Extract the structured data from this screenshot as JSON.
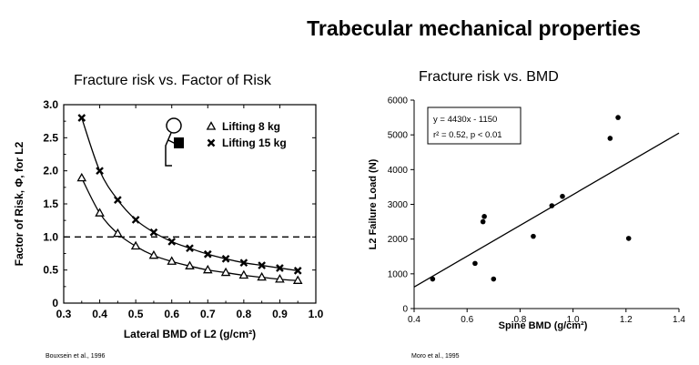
{
  "slide": {
    "title": "Trabecular mechanical properties",
    "left_heading": "Fracture risk vs. Factor of Risk",
    "right_heading": "Fracture risk vs. BMD",
    "left_credit": "Bouxsein et al., 1996",
    "right_credit": "Moro et al., 1995"
  },
  "chart_data": [
    {
      "type": "line",
      "title": "",
      "xlabel": "Lateral BMD of L2 (g/cm²)",
      "ylabel": "Factor of Risk, Φ, for L2",
      "xlim": [
        0.3,
        1.0
      ],
      "ylim": [
        0,
        3.0
      ],
      "xticks": [
        "0.3",
        "0.4",
        "0.5",
        "0.6",
        "0.7",
        "0.8",
        "0.9",
        "1.0"
      ],
      "yticks": [
        "0",
        "0.5",
        "1.0",
        "1.5",
        "2.0",
        "2.5",
        "3.0"
      ],
      "reference_line": {
        "y": 1.0,
        "style": "dashed"
      },
      "legend_position": "top-right",
      "series": [
        {
          "name": "Lifting 8 kg",
          "marker": "triangle",
          "x": [
            0.35,
            0.4,
            0.45,
            0.5,
            0.55,
            0.6,
            0.65,
            0.7,
            0.75,
            0.8,
            0.85,
            0.9,
            0.95
          ],
          "y": [
            1.89,
            1.36,
            1.05,
            0.86,
            0.72,
            0.63,
            0.56,
            0.5,
            0.46,
            0.42,
            0.39,
            0.36,
            0.34
          ]
        },
        {
          "name": "Lifting 15 kg",
          "marker": "x",
          "x": [
            0.35,
            0.4,
            0.45,
            0.5,
            0.55,
            0.6,
            0.65,
            0.7,
            0.75,
            0.8,
            0.85,
            0.9,
            0.95
          ],
          "y": [
            2.8,
            2.0,
            1.56,
            1.26,
            1.07,
            0.93,
            0.83,
            0.74,
            0.67,
            0.61,
            0.57,
            0.53,
            0.49
          ]
        }
      ]
    },
    {
      "type": "scatter",
      "title": "",
      "xlabel": "Spine BMD (g/cm²)",
      "ylabel": "L2 Failure Load (N)",
      "xlim": [
        0.4,
        1.4
      ],
      "ylim": [
        0,
        6000
      ],
      "xticks": [
        "0.4",
        "0.6",
        "0.8",
        "1.0",
        "1.2",
        "1.4"
      ],
      "yticks": [
        "0",
        "1000",
        "2000",
        "3000",
        "4000",
        "5000",
        "6000"
      ],
      "annotation_lines": [
        "y = 4430x - 1150",
        "r² = 0.52, p < 0.01"
      ],
      "fit_line": {
        "slope": 4430,
        "intercept": -1150
      },
      "points": [
        {
          "x": 0.47,
          "y": 850
        },
        {
          "x": 0.63,
          "y": 1300
        },
        {
          "x": 0.66,
          "y": 2500
        },
        {
          "x": 0.665,
          "y": 2650
        },
        {
          "x": 0.7,
          "y": 850
        },
        {
          "x": 0.85,
          "y": 2080
        },
        {
          "x": 0.92,
          "y": 2960
        },
        {
          "x": 0.96,
          "y": 3230
        },
        {
          "x": 1.14,
          "y": 4900
        },
        {
          "x": 1.17,
          "y": 5500
        },
        {
          "x": 1.21,
          "y": 2020
        }
      ]
    }
  ]
}
